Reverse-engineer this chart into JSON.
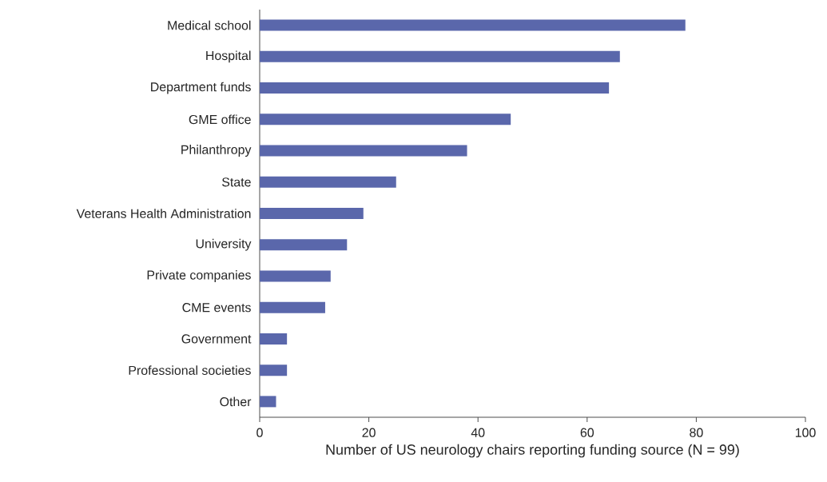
{
  "chart_data": {
    "type": "bar",
    "orientation": "horizontal",
    "xlabel": "Number of US neurology chairs reporting funding source (N = 99)",
    "categories": [
      "Medical school",
      "Hospital",
      "Department funds",
      "GME office",
      "Philanthropy",
      "State",
      "Veterans Health Administration",
      "University",
      "Private companies",
      "CME events",
      "Government",
      "Professional societies",
      "Other"
    ],
    "values": [
      78,
      66,
      64,
      46,
      38,
      25,
      19,
      16,
      13,
      12,
      5,
      5,
      3
    ],
    "color": "#5a67ab",
    "xlim": [
      0,
      100
    ],
    "xticks": [
      0,
      20,
      40,
      60,
      80,
      100
    ],
    "grid": false
  }
}
